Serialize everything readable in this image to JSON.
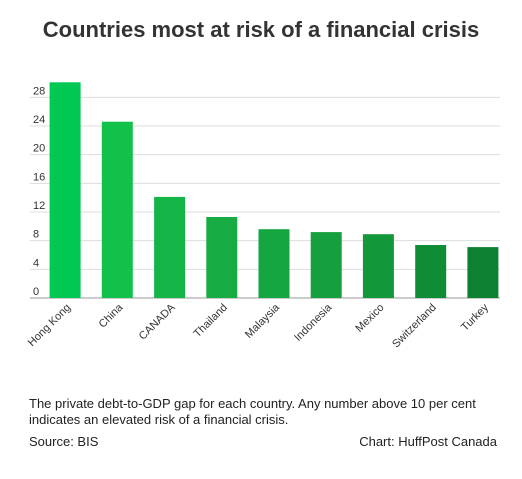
{
  "title": "Countries most at risk of a financial crisis",
  "caption": "The private debt-to-GDP gap for each country. Any number above 10 per cent indicates an elevated risk of a financial crisis.",
  "source": "Source: BIS",
  "credit": "Chart: HuffPost Canada",
  "chart_data": {
    "type": "bar",
    "categories": [
      "Hong Kong",
      "China",
      "CANADA",
      "Thailand",
      "Malaysia",
      "Indonesia",
      "Mexico",
      "Switzerland",
      "Turkey"
    ],
    "values": [
      30.1,
      24.6,
      14.1,
      11.3,
      9.6,
      9.2,
      8.9,
      7.4,
      7.1
    ],
    "ylim": [
      0,
      30
    ],
    "yticks": [
      0,
      4,
      8,
      12,
      16,
      20,
      24,
      28
    ],
    "grid": true,
    "colors": [
      "#00c853",
      "#11c149",
      "#14b446",
      "#17ab43",
      "#15a541",
      "#159f3e",
      "#13973b",
      "#118c36",
      "#0d8131"
    ]
  }
}
